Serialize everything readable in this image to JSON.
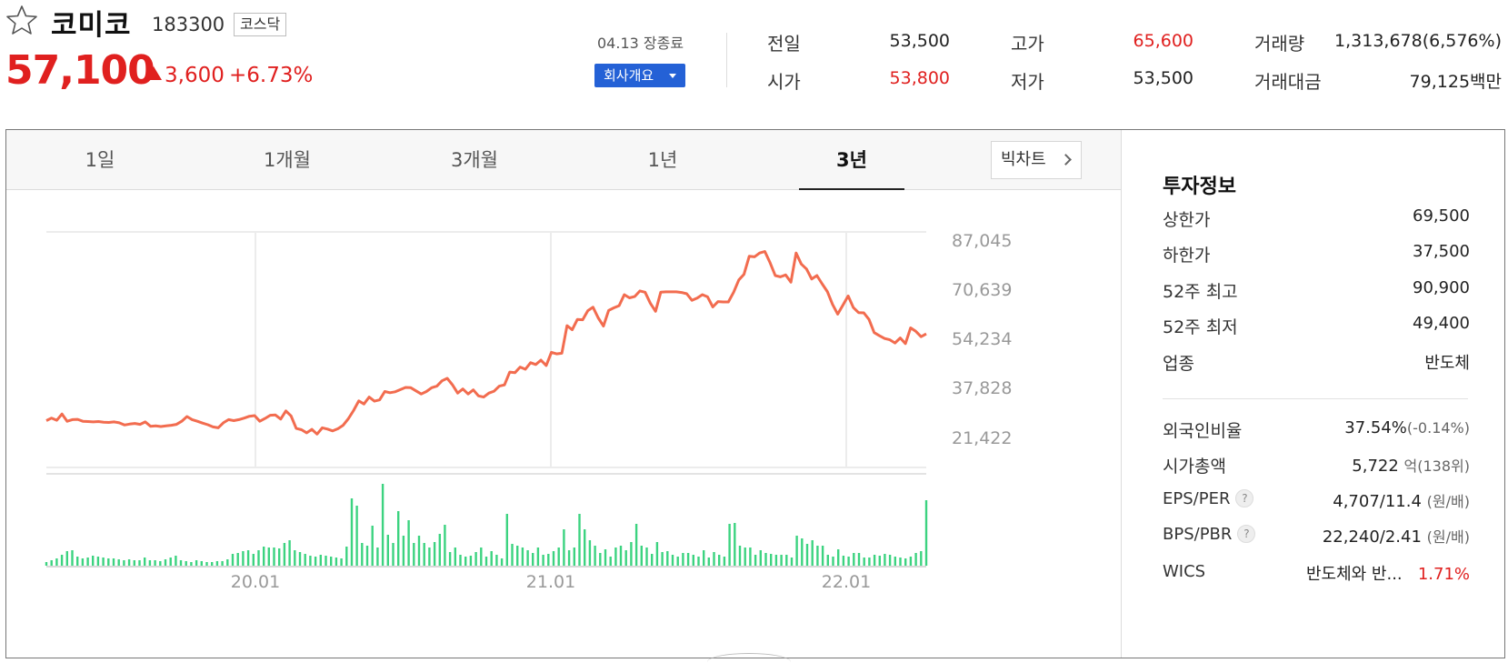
{
  "header": {
    "stock_name": "코미코",
    "stock_code": "183300",
    "market": "코스닥",
    "price": "57,100",
    "change": "3,600",
    "change_rate": "+6.73%",
    "close_info": "04.13 장종료",
    "company_button": "회사개요"
  },
  "quotes": [
    {
      "label": "전일",
      "value": "53,500",
      "color": "#222222"
    },
    {
      "label": "시가",
      "value": "53,800",
      "color": "#e0201f"
    },
    {
      "label": "고가",
      "value": "65,600",
      "color": "#e0201f"
    },
    {
      "label": "저가",
      "value": "53,500",
      "color": "#222222"
    },
    {
      "label": "거래량",
      "value": "1,313,678(6,576%)",
      "color": "#222222"
    },
    {
      "label": "거래대금",
      "value": "79,125",
      "unit": "백만",
      "color": "#222222"
    }
  ],
  "tabs": [
    "1일",
    "1개월",
    "3개월",
    "1년",
    "3년"
  ],
  "active_tab": "3년",
  "bigchart_button": "빅차트",
  "chart_data": {
    "type": "line",
    "y_tick_labels": [
      "87,045",
      "70,639",
      "54,234",
      "37,828",
      "21,422"
    ],
    "ylim": [
      21422,
      87045
    ],
    "x_tick_labels": [
      "20.01",
      "21.01",
      "22.01"
    ],
    "grid": true,
    "price_color": "#f26c4f",
    "volume_color": "#3cd380",
    "price_values": [
      26800,
      27600,
      26900,
      28900,
      26600,
      27100,
      27200,
      26600,
      26500,
      26400,
      26500,
      26300,
      26200,
      26400,
      26100,
      25400,
      25700,
      25900,
      25600,
      26400,
      25000,
      25100,
      24900,
      25100,
      25300,
      25600,
      26600,
      28100,
      27100,
      26600,
      26000,
      25500,
      24800,
      24500,
      26100,
      27100,
      26800,
      27100,
      27600,
      28200,
      28400,
      26600,
      27500,
      28500,
      28600,
      27300,
      29900,
      28300,
      24300,
      23900,
      22900,
      24000,
      22500,
      24500,
      24100,
      23500,
      24200,
      25300,
      27400,
      30000,
      33100,
      32100,
      34300,
      33000,
      33400,
      36100,
      35700,
      36000,
      36700,
      37400,
      37300,
      36300,
      35300,
      36100,
      37300,
      37800,
      39500,
      40300,
      38200,
      35600,
      36900,
      35300,
      36600,
      34700,
      34300,
      35600,
      36200,
      37800,
      38200,
      42300,
      42100,
      43900,
      43200,
      45300,
      44700,
      46100,
      44400,
      48600,
      48100,
      48300,
      57100,
      55800,
      59100,
      59000,
      61900,
      63000,
      59600,
      57000,
      62000,
      62800,
      63500,
      67000,
      66000,
      66400,
      68200,
      67800,
      64300,
      61700,
      67800,
      67900,
      67900,
      67900,
      67700,
      67300,
      65200,
      65900,
      67000,
      66300,
      63100,
      64800,
      64700,
      64700,
      67800,
      71700,
      73500,
      79300,
      79100,
      80300,
      80800,
      77200,
      73100,
      72700,
      73300,
      71000,
      80300,
      76800,
      75200,
      72000,
      73100,
      70500,
      68000,
      63900,
      60800,
      63700,
      66600,
      62900,
      61300,
      61200,
      59100,
      54900,
      53900,
      53000,
      52600,
      51600,
      53200,
      51400,
      56400,
      55300,
      53600,
      54500
    ]
  },
  "invest": {
    "title": "투자정보",
    "rows": [
      {
        "label": "상한가",
        "value": "69,500",
        "color": "#e0201f"
      },
      {
        "label": "하한가",
        "value": "37,500",
        "color": "#2a58d3"
      },
      {
        "label": "52주 최고",
        "value": "90,900",
        "color": "#222222"
      },
      {
        "label": "52주 최저",
        "value": "49,400",
        "color": "#222222"
      },
      {
        "label": "업종",
        "value": "반도체",
        "color": "#222222"
      }
    ],
    "metrics": [
      {
        "label": "외국인비율",
        "value": "37.54%",
        "sub": "(-0.14%)"
      },
      {
        "label": "시가총액",
        "value": "5,722",
        "sub": "억(138위)"
      },
      {
        "label": "EPS/PER",
        "value": "4,707/11.4",
        "sub": "(원/배)",
        "help": "?"
      },
      {
        "label": "BPS/PBR",
        "value": "22,240/2.41",
        "sub": "(원/배)",
        "help": "?"
      },
      {
        "label": "WICS",
        "value": "반도체와 반...",
        "extra": "1.71%"
      }
    ]
  }
}
